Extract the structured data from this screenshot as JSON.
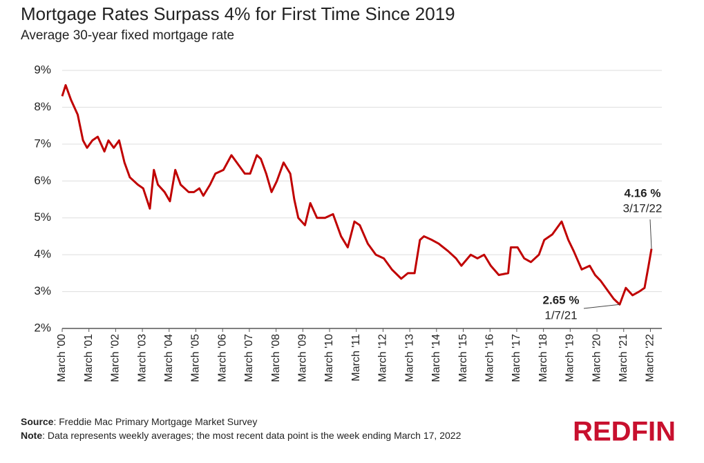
{
  "chart_data": {
    "type": "line",
    "title": "Mortgage Rates Surpass 4% for First Time Since 2019",
    "subtitle": "Average 30-year fixed mortgage rate",
    "x": [
      2000.17,
      2000.3,
      2000.5,
      2000.75,
      2000.95,
      2001.1,
      2001.3,
      2001.5,
      2001.75,
      2001.9,
      2002.1,
      2002.3,
      2002.5,
      2002.7,
      2003.0,
      2003.2,
      2003.45,
      2003.6,
      2003.75,
      2004.0,
      2004.2,
      2004.4,
      2004.6,
      2004.9,
      2005.1,
      2005.3,
      2005.45,
      2005.7,
      2005.9,
      2006.2,
      2006.5,
      2006.8,
      2007.0,
      2007.2,
      2007.45,
      2007.6,
      2007.8,
      2008.0,
      2008.2,
      2008.45,
      2008.7,
      2008.85,
      2009.0,
      2009.25,
      2009.45,
      2009.7,
      2010.0,
      2010.3,
      2010.6,
      2010.85,
      2011.1,
      2011.3,
      2011.6,
      2011.9,
      2012.2,
      2012.5,
      2012.85,
      2013.1,
      2013.35,
      2013.55,
      2013.7,
      2014.0,
      2014.25,
      2014.6,
      2014.9,
      2015.1,
      2015.45,
      2015.7,
      2015.95,
      2016.2,
      2016.5,
      2016.85,
      2016.95,
      2017.2,
      2017.45,
      2017.7,
      2018.0,
      2018.2,
      2018.5,
      2018.85,
      2019.1,
      2019.3,
      2019.6,
      2019.9,
      2020.1,
      2020.3,
      2020.6,
      2020.8,
      2021.02,
      2021.25,
      2021.5,
      2021.75,
      2021.95,
      2022.1,
      2022.21
    ],
    "values": [
      8.3,
      8.6,
      8.2,
      7.8,
      7.1,
      6.9,
      7.1,
      7.2,
      6.8,
      7.1,
      6.9,
      7.1,
      6.5,
      6.1,
      5.9,
      5.8,
      5.25,
      6.3,
      5.9,
      5.7,
      5.45,
      6.3,
      5.9,
      5.7,
      5.7,
      5.8,
      5.6,
      5.9,
      6.2,
      6.3,
      6.7,
      6.4,
      6.2,
      6.2,
      6.7,
      6.6,
      6.2,
      5.7,
      6.0,
      6.5,
      6.2,
      5.5,
      5.0,
      4.8,
      5.4,
      5.0,
      5.0,
      5.1,
      4.5,
      4.2,
      4.9,
      4.8,
      4.3,
      4.0,
      3.9,
      3.6,
      3.35,
      3.5,
      3.5,
      4.4,
      4.5,
      4.4,
      4.3,
      4.1,
      3.9,
      3.7,
      4.0,
      3.9,
      4.0,
      3.7,
      3.45,
      3.5,
      4.2,
      4.2,
      3.9,
      3.8,
      4.0,
      4.4,
      4.55,
      4.9,
      4.4,
      4.1,
      3.6,
      3.7,
      3.45,
      3.3,
      3.0,
      2.8,
      2.65,
      3.1,
      2.9,
      3.0,
      3.1,
      3.7,
      4.16
    ],
    "color": "#c00000",
    "xlim": [
      2000.17,
      2022.21
    ],
    "xticks": [
      {
        "value": 2000.17,
        "label": "March '00"
      },
      {
        "value": 2001.17,
        "label": "March '01"
      },
      {
        "value": 2002.17,
        "label": "March '02"
      },
      {
        "value": 2003.17,
        "label": "March '03"
      },
      {
        "value": 2004.17,
        "label": "March '04"
      },
      {
        "value": 2005.17,
        "label": "March '05"
      },
      {
        "value": 2006.17,
        "label": "March '06"
      },
      {
        "value": 2007.17,
        "label": "March '07"
      },
      {
        "value": 2008.17,
        "label": "March '08"
      },
      {
        "value": 2009.17,
        "label": "March '09"
      },
      {
        "value": 2010.17,
        "label": "March '10"
      },
      {
        "value": 2011.17,
        "label": "March '11"
      },
      {
        "value": 2012.17,
        "label": "March '12"
      },
      {
        "value": 2013.17,
        "label": "March '13"
      },
      {
        "value": 2014.17,
        "label": "March '14"
      },
      {
        "value": 2015.17,
        "label": "March '15"
      },
      {
        "value": 2016.17,
        "label": "March '16"
      },
      {
        "value": 2017.17,
        "label": "March '17"
      },
      {
        "value": 2018.17,
        "label": "March '18"
      },
      {
        "value": 2019.17,
        "label": "March '19"
      },
      {
        "value": 2020.17,
        "label": "March '20"
      },
      {
        "value": 2021.17,
        "label": "March '21"
      },
      {
        "value": 2022.17,
        "label": "March '22"
      }
    ],
    "ylim": [
      2,
      9
    ],
    "yticks": [
      {
        "value": 2,
        "label": "2%"
      },
      {
        "value": 3,
        "label": "3%"
      },
      {
        "value": 4,
        "label": "4%"
      },
      {
        "value": 5,
        "label": "5%"
      },
      {
        "value": 6,
        "label": "6%"
      },
      {
        "value": 7,
        "label": "7%"
      },
      {
        "value": 8,
        "label": "8%"
      },
      {
        "value": 9,
        "label": "9%"
      }
    ],
    "grid": true,
    "annotations": [
      {
        "label": "4.16 %",
        "date": "3/17/22"
      },
      {
        "label": "2.65 %",
        "date": "1/7/21"
      }
    ],
    "source_label": "Source",
    "source": ": Freddie Mac Primary Mortgage Market Survey",
    "note_label": "Note",
    "note": ": Data represents weekly averages; the most recent data point is the week ending March 17, 2022",
    "logo": "REDFIN"
  }
}
